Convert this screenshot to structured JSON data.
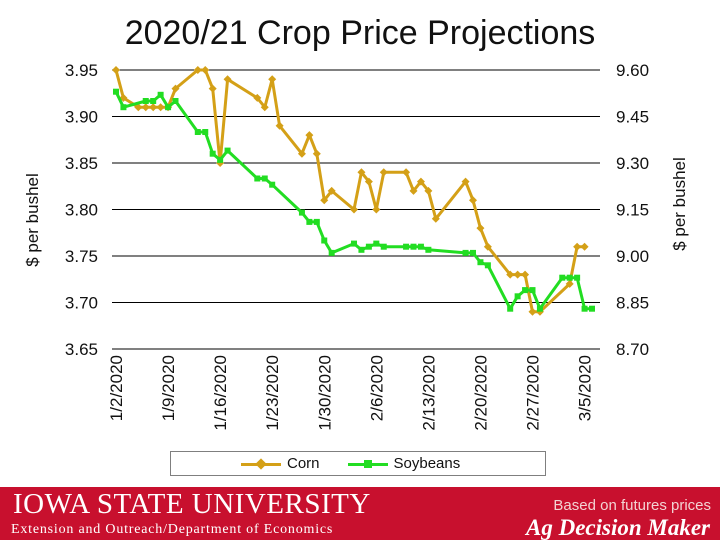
{
  "chart_data": {
    "type": "line",
    "title": "2020/21 Crop Price Projections",
    "ylabel_left": "$ per bushel",
    "ylabel_right": "$ per bushel",
    "y_left": {
      "min": 3.65,
      "max": 3.95,
      "ticks": [
        "3.95",
        "3.90",
        "3.85",
        "3.80",
        "3.75",
        "3.70",
        "3.65"
      ]
    },
    "y_right": {
      "min": 8.7,
      "max": 9.6,
      "ticks": [
        "9.60",
        "9.45",
        "9.30",
        "9.15",
        "9.00",
        "8.85",
        "8.70"
      ]
    },
    "x_range": [
      0,
      64
    ],
    "x_ticks": [
      {
        "x": 0,
        "label": "1/2/2020"
      },
      {
        "x": 7,
        "label": "1/9/2020"
      },
      {
        "x": 14,
        "label": "1/16/2020"
      },
      {
        "x": 21,
        "label": "1/23/2020"
      },
      {
        "x": 28,
        "label": "1/30/2020"
      },
      {
        "x": 35,
        "label": "2/6/2020"
      },
      {
        "x": 42,
        "label": "2/13/2020"
      },
      {
        "x": 49,
        "label": "2/20/2020"
      },
      {
        "x": 56,
        "label": "2/27/2020"
      },
      {
        "x": 63,
        "label": "3/5/2020"
      }
    ],
    "grid": "horizontal",
    "legend_position": "bottom",
    "series": [
      {
        "name": "Corn",
        "axis": "left",
        "color": "#d4a017",
        "marker": "diamond",
        "x": [
          0,
          1,
          3,
          4,
          5,
          6,
          7,
          8,
          11,
          12,
          13,
          14,
          15,
          19,
          20,
          21,
          22,
          25,
          26,
          27,
          28,
          29,
          32,
          33,
          34,
          35,
          36,
          39,
          40,
          41,
          42,
          43,
          47,
          48,
          49,
          50,
          53,
          54,
          55,
          56,
          57,
          61,
          62,
          63
        ],
        "y": [
          3.95,
          3.92,
          3.91,
          3.91,
          3.91,
          3.91,
          3.91,
          3.93,
          3.95,
          3.95,
          3.93,
          3.85,
          3.94,
          3.92,
          3.91,
          3.94,
          3.89,
          3.86,
          3.88,
          3.86,
          3.81,
          3.82,
          3.8,
          3.84,
          3.83,
          3.8,
          3.84,
          3.84,
          3.82,
          3.83,
          3.82,
          3.79,
          3.83,
          3.81,
          3.78,
          3.76,
          3.73,
          3.73,
          3.73,
          3.69,
          3.69,
          3.72,
          3.76,
          3.76
        ]
      },
      {
        "name": "Soybeans",
        "axis": "right",
        "color": "#22dd22",
        "marker": "square",
        "x": [
          0,
          1,
          4,
          5,
          6,
          7,
          8,
          11,
          12,
          13,
          14,
          15,
          19,
          20,
          21,
          25,
          26,
          27,
          28,
          29,
          32,
          33,
          34,
          35,
          36,
          39,
          40,
          41,
          42,
          47,
          48,
          49,
          50,
          53,
          54,
          55,
          56,
          57,
          60,
          61,
          62,
          63,
          64
        ],
        "y": [
          9.53,
          9.48,
          9.5,
          9.5,
          9.52,
          9.48,
          9.5,
          9.4,
          9.4,
          9.33,
          9.31,
          9.34,
          9.25,
          9.25,
          9.23,
          9.14,
          9.11,
          9.11,
          9.05,
          9.01,
          9.04,
          9.02,
          9.03,
          9.04,
          9.03,
          9.03,
          9.03,
          9.03,
          9.02,
          9.01,
          9.01,
          8.98,
          8.97,
          8.83,
          8.87,
          8.89,
          8.89,
          8.83,
          8.93,
          8.93,
          8.93,
          8.83,
          8.83
        ]
      }
    ]
  },
  "footer": {
    "university": "Iowa State University",
    "department": "Extension and Outreach/Department of Economics",
    "note": "Based on futures prices",
    "brand": "Ag Decision Maker"
  }
}
